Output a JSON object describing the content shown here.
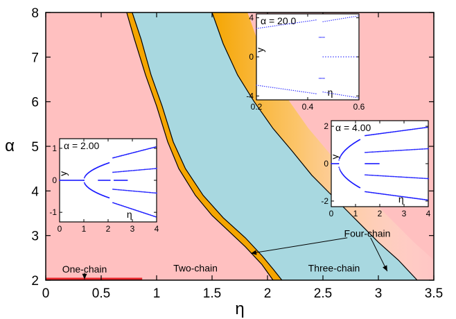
{
  "chart_data": {
    "type": "area",
    "title": "",
    "xlabel": "η",
    "ylabel": "α",
    "xlim": [
      0,
      3.5
    ],
    "ylim": [
      2,
      8
    ],
    "x_ticks": [
      "0",
      "0.5",
      "1",
      "1.5",
      "2",
      "2.5",
      "3",
      "3.5"
    ],
    "y_ticks": [
      "2",
      "3",
      "4",
      "5",
      "6",
      "7",
      "8"
    ],
    "colors": {
      "one_chain": "#e8262b",
      "two_chain": "#ffc0c0",
      "three_chain": "#a8d8e0",
      "four_chain": "#f5a500",
      "fade": "#ffe6b8"
    },
    "boundaries": {
      "two_three": [
        [
          0.73,
          8
        ],
        [
          0.8,
          7.4
        ],
        [
          0.9,
          6.6
        ],
        [
          1.0,
          5.9
        ],
        [
          1.1,
          5.1
        ],
        [
          1.2,
          4.5
        ],
        [
          1.35,
          3.9
        ],
        [
          1.5,
          3.45
        ],
        [
          1.65,
          3.1
        ],
        [
          1.8,
          2.75
        ],
        [
          1.95,
          2.35
        ],
        [
          2.05,
          2.0
        ]
      ],
      "four_lower": [
        [
          0.78,
          8
        ],
        [
          0.86,
          7.4
        ],
        [
          0.95,
          6.6
        ],
        [
          1.05,
          5.9
        ],
        [
          1.15,
          5.1
        ],
        [
          1.26,
          4.5
        ],
        [
          1.42,
          3.9
        ],
        [
          1.6,
          3.4
        ],
        [
          1.8,
          2.95
        ],
        [
          1.95,
          2.55
        ],
        [
          2.05,
          2.25
        ],
        [
          2.13,
          2.0
        ]
      ],
      "three_four": [
        [
          1.5,
          8
        ],
        [
          1.6,
          7.3
        ],
        [
          1.73,
          6.6
        ],
        [
          1.88,
          6.0
        ],
        [
          2.05,
          5.4
        ],
        [
          2.22,
          4.9
        ],
        [
          2.4,
          4.35
        ],
        [
          2.6,
          3.85
        ],
        [
          2.8,
          3.35
        ],
        [
          3.0,
          2.85
        ],
        [
          3.18,
          2.45
        ],
        [
          3.35,
          2.0
        ]
      ]
    },
    "one_chain_segment": {
      "x": [
        0,
        0.87
      ],
      "y": 2.0
    },
    "region_labels": {
      "one_chain": "One-chain",
      "two_chain": "Two-chain",
      "three_chain": "Three-chain",
      "four_chain": "Four-chain"
    },
    "region_label_positions": {
      "one_chain": [
        0.35,
        2.25
      ],
      "two_chain": [
        1.35,
        2.27
      ],
      "three_chain": [
        2.6,
        2.27
      ],
      "four_chain": [
        2.9,
        3.05
      ]
    },
    "insets": [
      {
        "label": "α = 2.00",
        "xlabel": "η",
        "ylabel": "y",
        "xlim": [
          0,
          4
        ],
        "ylim": [
          -1.3,
          1.3
        ],
        "x_ticks": [
          "0",
          "1",
          "2",
          "3",
          "4"
        ],
        "y_ticks": [
          "-1",
          "0",
          "1"
        ],
        "y_tick_values": [
          -1,
          0,
          1
        ]
      },
      {
        "label": "α = 20.0",
        "xlabel": "η",
        "ylabel": "y",
        "xlim": [
          0.2,
          0.6
        ],
        "ylim": [
          -4.4,
          4.4
        ],
        "x_ticks": [
          "0.2",
          "0.4",
          "0.6"
        ],
        "y_ticks": [
          "-4",
          "0",
          "4"
        ],
        "y_tick_values": [
          -4,
          0,
          4
        ]
      },
      {
        "label": "α = 4.00",
        "xlabel": "η",
        "ylabel": "y",
        "xlim": [
          0,
          4
        ],
        "ylim": [
          -2.3,
          2.3
        ],
        "x_ticks": [
          "0",
          "1",
          "2",
          "3",
          "4"
        ],
        "y_ticks": [
          "-2",
          "0",
          "2"
        ],
        "y_tick_values": [
          -2,
          0,
          2
        ]
      }
    ]
  }
}
